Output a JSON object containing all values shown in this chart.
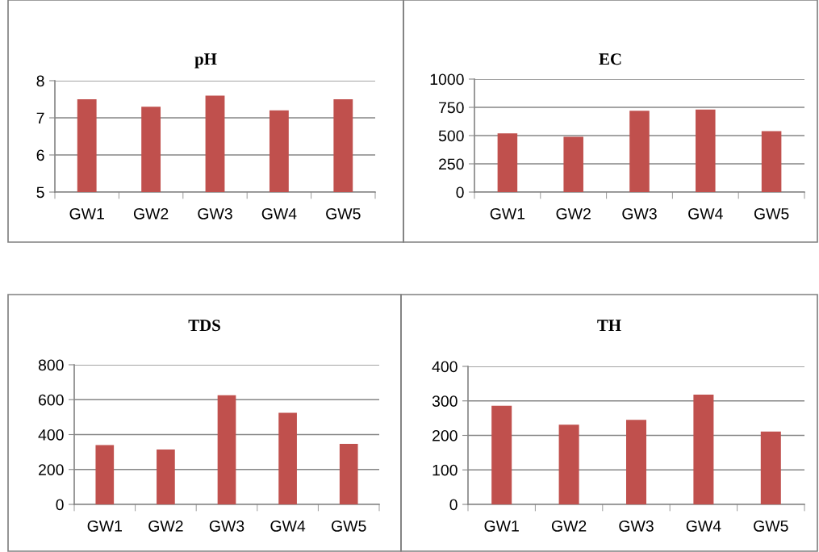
{
  "chart_data": [
    {
      "type": "bar",
      "title": "pH",
      "categories": [
        "GW1",
        "GW2",
        "GW3",
        "GW4",
        "GW5"
      ],
      "values": [
        7.5,
        7.3,
        7.6,
        7.2,
        7.5
      ],
      "color": "#c0504d",
      "ylim": [
        5,
        8
      ],
      "yticks": [
        5,
        6,
        7,
        8
      ],
      "grid": "y"
    },
    {
      "type": "bar",
      "title": "EC",
      "categories": [
        "GW1",
        "GW2",
        "GW3",
        "GW4",
        "GW5"
      ],
      "values": [
        520,
        490,
        720,
        730,
        540
      ],
      "color": "#c0504d",
      "ylim": [
        0,
        1000
      ],
      "yticks": [
        0,
        250,
        500,
        750,
        1000
      ],
      "grid": "y"
    },
    {
      "type": "bar",
      "title": "TDS",
      "categories": [
        "GW1",
        "GW2",
        "GW3",
        "GW4",
        "GW5"
      ],
      "values": [
        340,
        315,
        625,
        525,
        347
      ],
      "color": "#c0504d",
      "ylim": [
        0,
        800
      ],
      "yticks": [
        0,
        200,
        400,
        600,
        800
      ],
      "grid": "y"
    },
    {
      "type": "bar",
      "title": "TH",
      "categories": [
        "GW1",
        "GW2",
        "GW3",
        "GW4",
        "GW5"
      ],
      "values": [
        286,
        231,
        245,
        318,
        211
      ],
      "color": "#c0504d",
      "ylim": [
        0,
        400
      ],
      "yticks": [
        0,
        100,
        200,
        300,
        400
      ],
      "grid": "y"
    }
  ]
}
